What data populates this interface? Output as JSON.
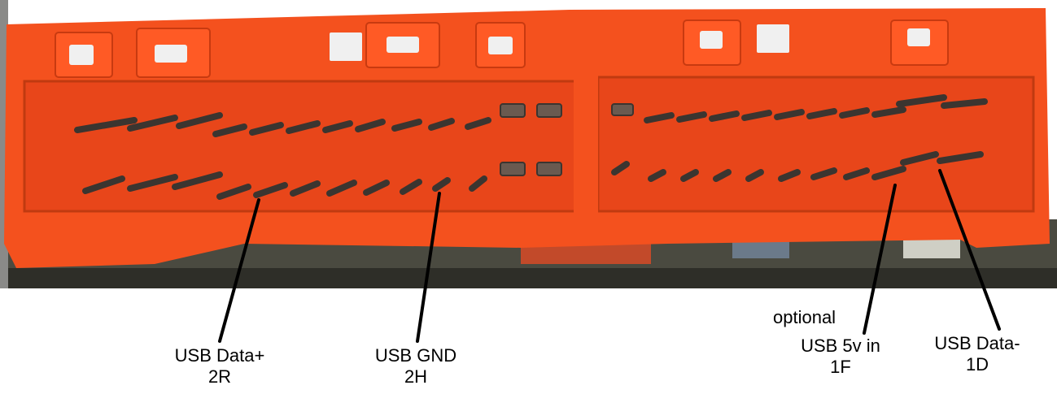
{
  "labels": {
    "data_plus": {
      "line1": "USB Data+",
      "line2": "2R"
    },
    "gnd": {
      "line1": "USB GND",
      "line2": "2H"
    },
    "five_v": {
      "line0": "optional",
      "line1": "USB 5v in",
      "line2": "1F"
    },
    "data_minus": {
      "line1": "USB Data-",
      "line2": "1D"
    }
  },
  "colors": {
    "connector": "#f4511e",
    "connector_dark": "#d9400f",
    "pcb": "#3a3a32",
    "pin": "#3b3530",
    "pointer": "#000000"
  }
}
